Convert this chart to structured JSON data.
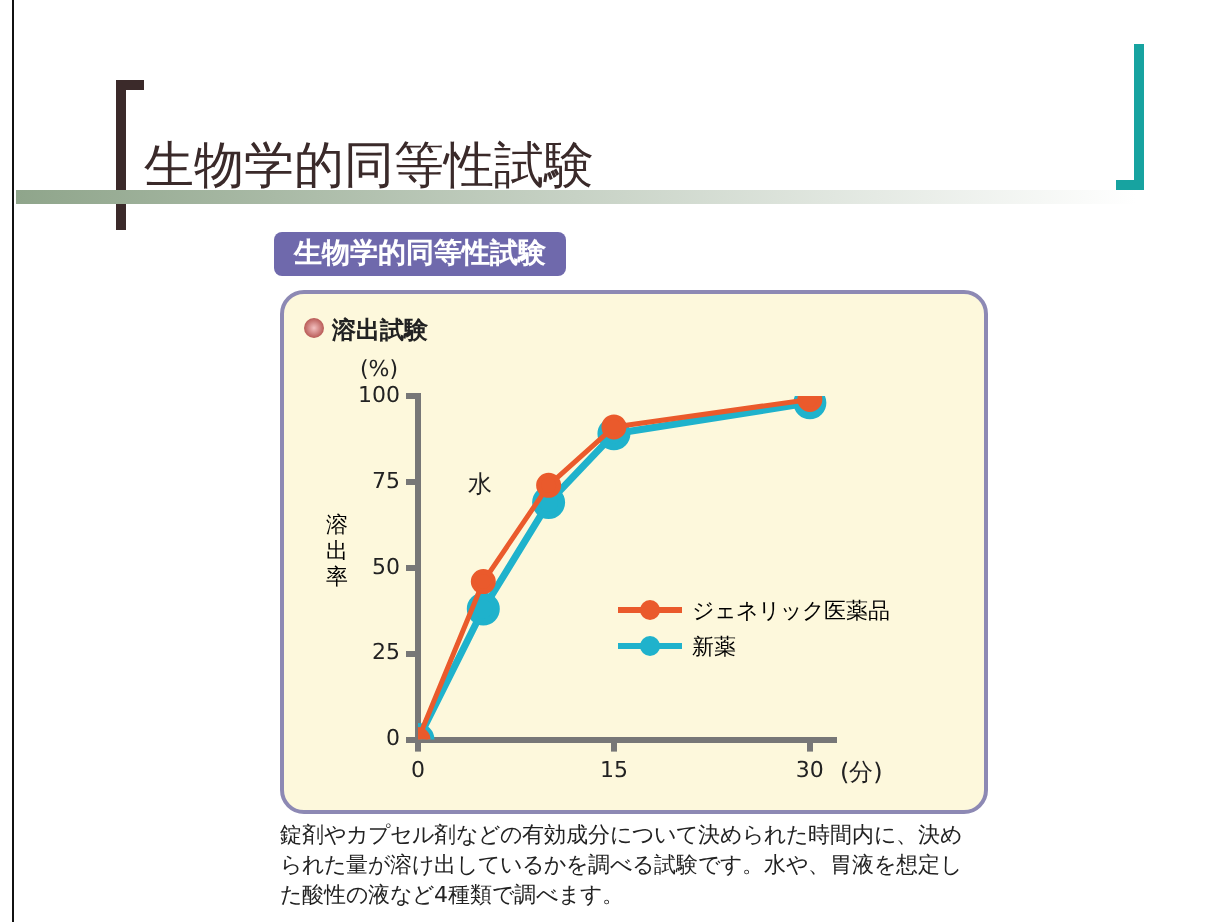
{
  "chart_data": {
    "type": "line",
    "title": "生物学的同等性試験",
    "subtitle": "生物学的同等性試験",
    "ylabel": "溶出率",
    "annotations": [
      "溶出試験",
      "(%)",
      "(分)",
      "水",
      "錠剤やカプセル剤などの有効成分について決められた時間内に、決められた量が溶け出しているかを調べる試験です。水や、胃液を想定した酸性の液など4種類で調べます。"
    ],
    "x": [
      0,
      5,
      10,
      15,
      30
    ],
    "series": [
      {
        "name": "ジェネリック医薬品",
        "color": "#ea5a2c",
        "values": [
          0,
          46,
          74,
          91,
          99
        ]
      },
      {
        "name": "新薬",
        "color": "#1fb2cc",
        "values": [
          0,
          38,
          69,
          89,
          98
        ]
      }
    ],
    "xlim": [
      0,
      32
    ],
    "xticks": [
      0,
      15,
      30
    ],
    "ylim": [
      0,
      100
    ],
    "yticks": [
      0,
      25,
      50,
      75,
      100
    ],
    "grid": false,
    "legend": "right",
    "marker": "circle",
    "line_style": "solid"
  }
}
